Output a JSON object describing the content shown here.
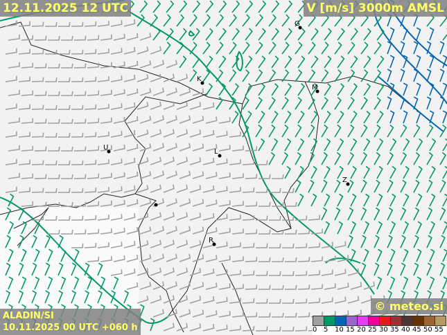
{
  "header": {
    "datetime": "12.11.2025 12 UTC",
    "parameter": "V [m/s] 3000m AMSL"
  },
  "footer": {
    "model": "ALADIN/SI",
    "run": "10.11.2025 00 UTC +060 h",
    "brand": "© meteo.si"
  },
  "legend": {
    "ticks": [
      "0",
      "5",
      "10",
      "15",
      "20",
      "25",
      "30",
      "35",
      "40",
      "45",
      "50",
      "55"
    ],
    "colors": [
      "#a0a0a0",
      "#009966",
      "#0066b3",
      "#9966cc",
      "#e040f0",
      "#f0009a",
      "#e61c1c",
      "#993333",
      "#4d3333",
      "#663300",
      "#996633",
      "#b89966"
    ]
  },
  "cities": [
    {
      "label": "G"
    },
    {
      "label": "K"
    },
    {
      "label": "M"
    },
    {
      "label": "U"
    },
    {
      "label": "L"
    },
    {
      "label": "Z"
    },
    {
      "label": "R"
    }
  ],
  "contour_colors": {
    "5": "#009966",
    "10": "#0066b3"
  }
}
